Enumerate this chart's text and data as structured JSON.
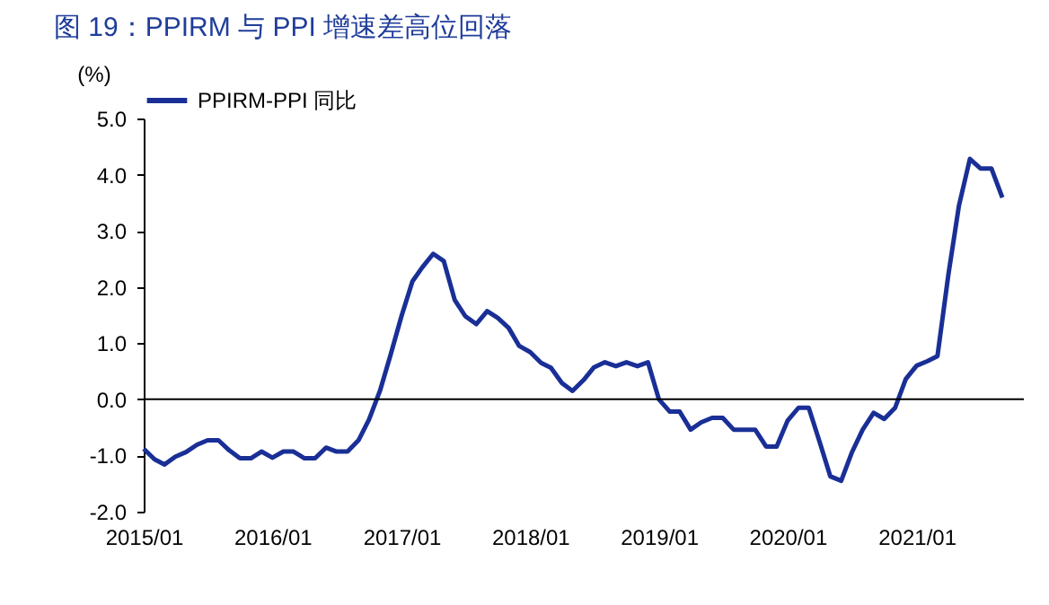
{
  "chart_data": {
    "type": "line",
    "title": "图 19：PPIRM 与 PPI 增速差高位回落",
    "ylabel": "(%)",
    "x": [
      "2015-01",
      "2015-02",
      "2015-03",
      "2015-04",
      "2015-05",
      "2015-06",
      "2015-07",
      "2015-08",
      "2015-09",
      "2015-10",
      "2015-11",
      "2015-12",
      "2016-01",
      "2016-02",
      "2016-03",
      "2016-04",
      "2016-05",
      "2016-06",
      "2016-07",
      "2016-08",
      "2016-09",
      "2016-10",
      "2016-11",
      "2016-12",
      "2017-01",
      "2017-02",
      "2017-03",
      "2017-04",
      "2017-05",
      "2017-06",
      "2017-07",
      "2017-08",
      "2017-09",
      "2017-10",
      "2017-11",
      "2017-12",
      "2018-01",
      "2018-02",
      "2018-03",
      "2018-04",
      "2018-05",
      "2018-06",
      "2018-07",
      "2018-08",
      "2018-09",
      "2018-10",
      "2018-11",
      "2018-12",
      "2019-01",
      "2019-02",
      "2019-03",
      "2019-04",
      "2019-05",
      "2019-06",
      "2019-07",
      "2019-08",
      "2019-09",
      "2019-10",
      "2019-11",
      "2019-12",
      "2020-01",
      "2020-02",
      "2020-03",
      "2020-04",
      "2020-05",
      "2020-06",
      "2020-07",
      "2020-08",
      "2020-09",
      "2020-10",
      "2020-11",
      "2020-12",
      "2021-01",
      "2021-02",
      "2021-03",
      "2021-04",
      "2021-05",
      "2021-06",
      "2021-07",
      "2021-08",
      "2021-09"
    ],
    "series": [
      {
        "name": "PPIRM-PPI 同比",
        "color": "#1a2f96",
        "values": [
          -0.88,
          -1.07,
          -1.16,
          -1.02,
          -0.94,
          -0.81,
          -0.73,
          -0.73,
          -0.91,
          -1.05,
          -1.05,
          -0.93,
          -1.04,
          -0.93,
          -0.93,
          -1.05,
          -1.05,
          -0.86,
          -0.93,
          -0.93,
          -0.73,
          -0.36,
          0.15,
          0.79,
          1.48,
          2.1,
          2.35,
          2.59,
          2.46,
          1.77,
          1.48,
          1.34,
          1.57,
          1.45,
          1.27,
          0.95,
          0.84,
          0.65,
          0.56,
          0.29,
          0.15,
          0.34,
          0.57,
          0.66,
          0.59,
          0.66,
          0.59,
          0.66,
          0.0,
          -0.22,
          -0.22,
          -0.54,
          -0.41,
          -0.33,
          -0.33,
          -0.54,
          -0.54,
          -0.54,
          -0.84,
          -0.84,
          -0.38,
          -0.15,
          -0.15,
          -0.76,
          -1.37,
          -1.45,
          -0.95,
          -0.54,
          -0.24,
          -0.35,
          -0.15,
          0.36,
          0.6,
          0.68,
          0.77,
          2.22,
          3.45,
          4.28,
          4.11,
          4.11,
          3.59
        ]
      }
    ],
    "xlim": [
      "2015-01",
      "2021-11"
    ],
    "xticks": [
      {
        "value": "2015-01",
        "label": "2015/01"
      },
      {
        "value": "2016-01",
        "label": "2016/01"
      },
      {
        "value": "2017-01",
        "label": "2017/01"
      },
      {
        "value": "2018-01",
        "label": "2018/01"
      },
      {
        "value": "2019-01",
        "label": "2019/01"
      },
      {
        "value": "2020-01",
        "label": "2020/01"
      },
      {
        "value": "2021-01",
        "label": "2021/01"
      }
    ],
    "ylim": [
      -2,
      5
    ],
    "yticks": [
      {
        "value": -2,
        "label": "-2.0"
      },
      {
        "value": -1,
        "label": "-1.0"
      },
      {
        "value": 0,
        "label": "0.0"
      },
      {
        "value": 1,
        "label": "1.0"
      },
      {
        "value": 2,
        "label": "2.0"
      },
      {
        "value": 3,
        "label": "3.0"
      },
      {
        "value": 4,
        "label": "4.0"
      },
      {
        "value": 5,
        "label": "5.0"
      }
    ],
    "ref_lines": [
      {
        "axis": "y",
        "value": 0,
        "color": "#000000"
      }
    ],
    "legend": "top",
    "grid": false,
    "marker": "none",
    "line_style": "solid"
  }
}
